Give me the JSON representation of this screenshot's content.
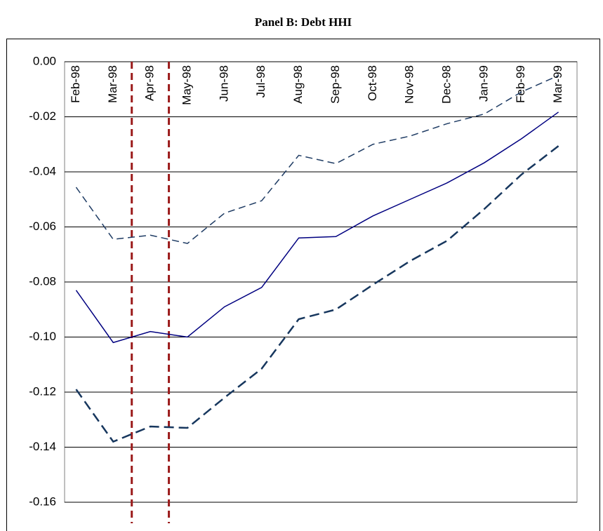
{
  "chart_data": {
    "type": "line",
    "title": "Panel B: Debt HHI",
    "categories": [
      "Feb-98",
      "Mar-98",
      "Apr-98",
      "May-98",
      "Jun-98",
      "Jul-98",
      "Aug-98",
      "Sep-98",
      "Oct-98",
      "Nov-98",
      "Dec-98",
      "Jan-99",
      "Feb-99",
      "Mar-99"
    ],
    "series": [
      {
        "color": "#000080",
        "dash": "none",
        "width": 1.5,
        "values": [
          -0.083,
          -0.102,
          -0.098,
          -0.1,
          -0.089,
          -0.082,
          -0.064,
          -0.0635,
          -0.056,
          -0.05,
          -0.044,
          -0.0367,
          -0.028,
          -0.0183
        ]
      },
      {
        "color": "#1f3c64",
        "dash": "10 6",
        "width": 1.5,
        "values": [
          -0.0456,
          -0.0645,
          -0.063,
          -0.066,
          -0.055,
          -0.0505,
          -0.034,
          -0.037,
          -0.03,
          -0.027,
          -0.0225,
          -0.019,
          -0.011,
          -0.005
        ]
      },
      {
        "color": "#17375e",
        "dash": "14 7",
        "width": 2.5,
        "values": [
          -0.119,
          -0.138,
          -0.1325,
          -0.133,
          -0.122,
          -0.1115,
          -0.0935,
          -0.09,
          -0.081,
          -0.0724,
          -0.065,
          -0.0535,
          -0.041,
          -0.0306
        ]
      }
    ],
    "ylim": [
      -0.16,
      0
    ],
    "yticks": [
      {
        "value": 0,
        "label": "0.00"
      },
      {
        "value": -0.02,
        "label": "-0.02"
      },
      {
        "value": -0.04,
        "label": "-0.04"
      },
      {
        "value": -0.06,
        "label": "-0.06"
      },
      {
        "value": -0.08,
        "label": "-0.08"
      },
      {
        "value": -0.1,
        "label": "-0.10"
      },
      {
        "value": -0.12,
        "label": "-0.12"
      },
      {
        "value": -0.14,
        "label": "-0.14"
      },
      {
        "value": -0.16,
        "label": "-0.16"
      }
    ],
    "grid": true
  }
}
